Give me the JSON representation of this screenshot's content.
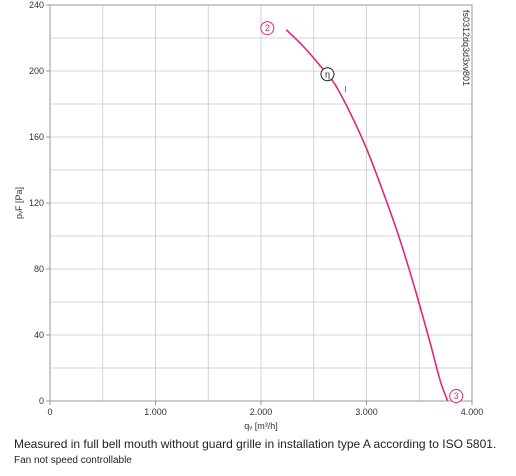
{
  "chart_data": {
    "type": "line",
    "xlabel": "qᵥ [m³/h]",
    "ylabel": "pᵥF [Pa]",
    "xlim": [
      0,
      4000
    ],
    "ylim": [
      0,
      240
    ],
    "x_ticks": [
      {
        "value": 0,
        "label": "0"
      },
      {
        "value": 1000,
        "label": "1.000"
      },
      {
        "value": 2000,
        "label": "2.000"
      },
      {
        "value": 3000,
        "label": "3.000"
      },
      {
        "value": 4000,
        "label": "4.000"
      }
    ],
    "y_ticks": [
      {
        "value": 0,
        "label": "0"
      },
      {
        "value": 40,
        "label": "40"
      },
      {
        "value": 80,
        "label": "80"
      },
      {
        "value": 120,
        "label": "120"
      },
      {
        "value": 160,
        "label": "160"
      },
      {
        "value": 200,
        "label": "200"
      },
      {
        "value": 240,
        "label": "240"
      }
    ],
    "series": [
      {
        "name": "I",
        "color": "#e0287a",
        "x": [
          2240,
          2400,
          2550,
          2700,
          2850,
          3000,
          3150,
          3300,
          3450,
          3600,
          3700,
          3770
        ],
        "y": [
          225,
          215,
          204,
          192,
          174,
          153,
          128,
          101,
          70,
          36,
          12,
          0
        ]
      }
    ],
    "markers": [
      {
        "label": "2",
        "x": 2060,
        "y": 226,
        "color": "#e0287a"
      },
      {
        "label": "η",
        "x": 2630,
        "y": 198,
        "color": "#222222"
      },
      {
        "label": "3",
        "x": 3850,
        "y": 3,
        "color": "#e0287a"
      }
    ],
    "series_label": {
      "text": "I",
      "x": 2800,
      "y": 187
    },
    "side_text": "fs0312dq3d3xv801",
    "grid": true
  },
  "notes": {
    "line1": "Measured in full bell mouth without guard grille in installation type A according to ISO 5801.",
    "line2": "Fan not speed controllable"
  }
}
